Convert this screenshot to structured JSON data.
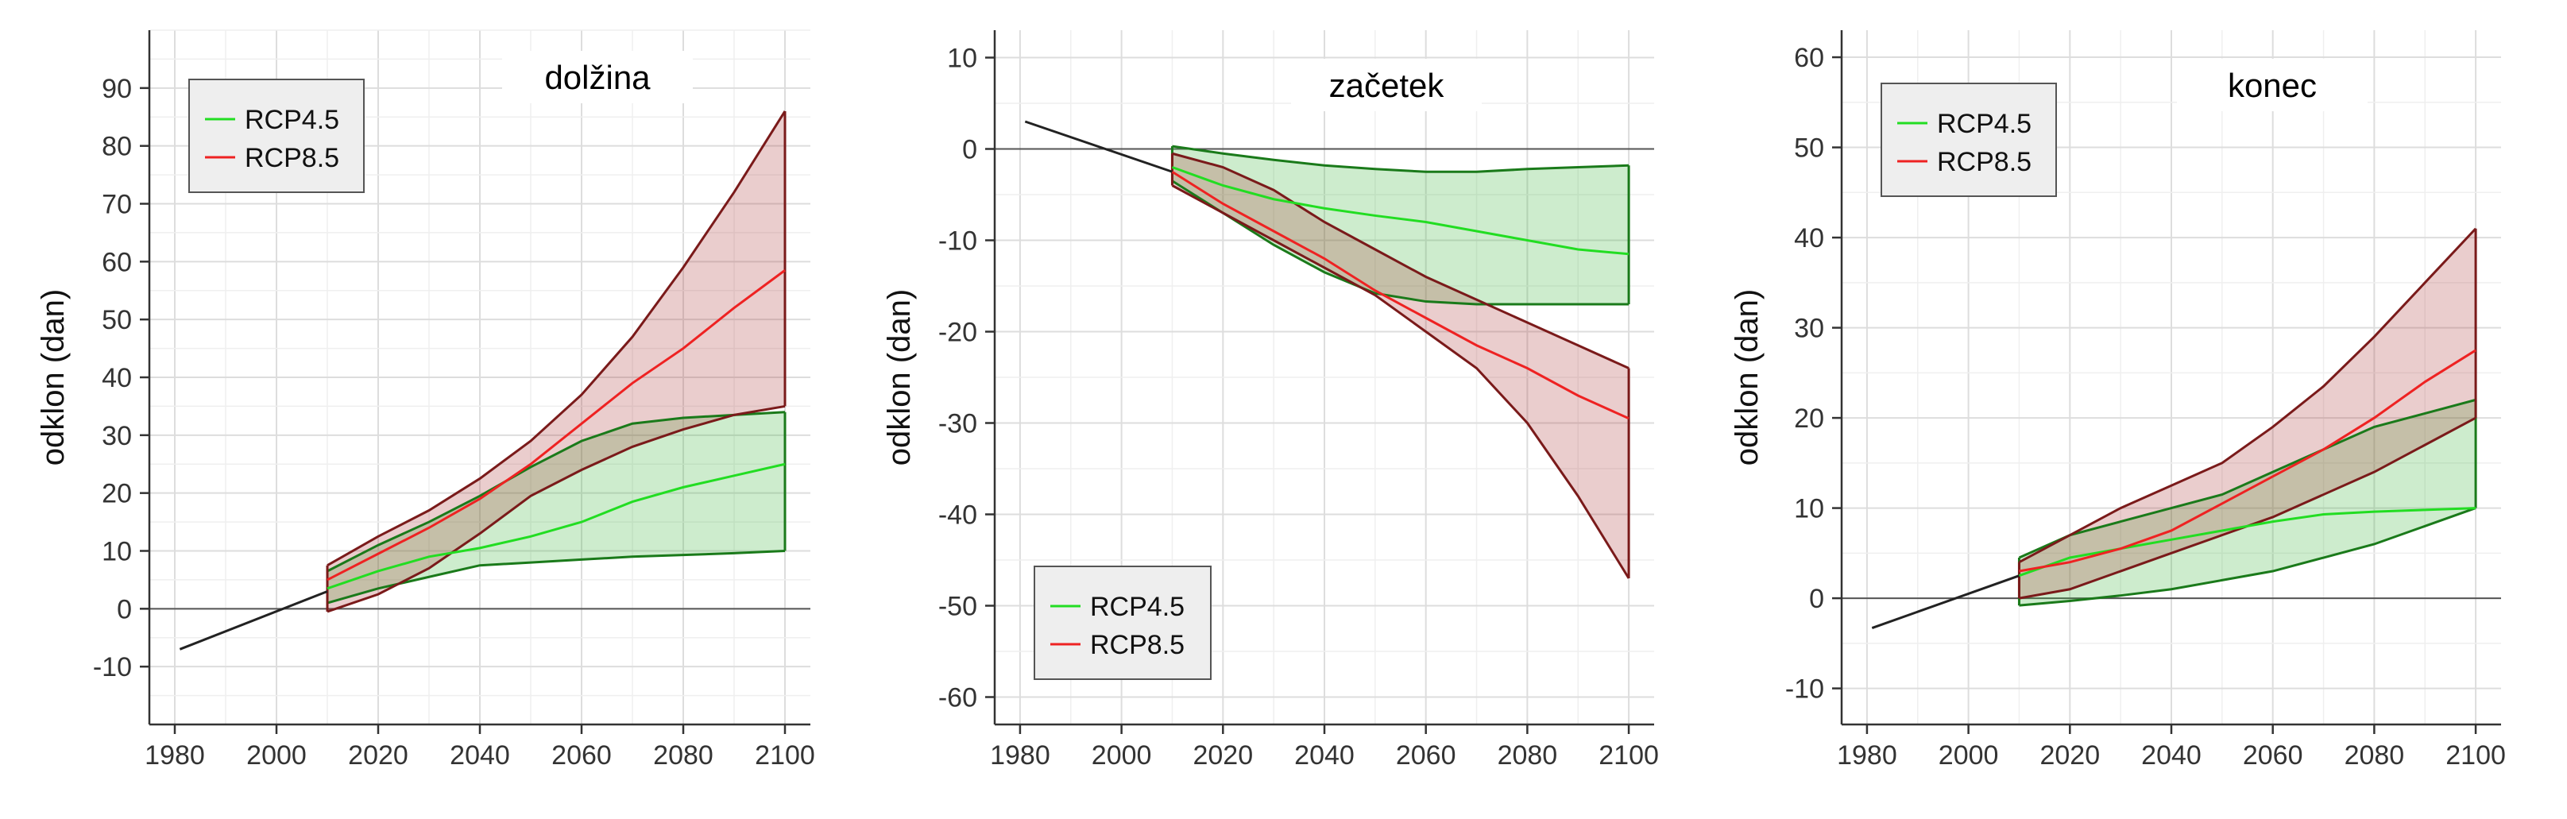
{
  "chart_data": [
    {
      "type": "line",
      "title": "dolžina",
      "xlabel": "",
      "ylabel": "odklon (dan)",
      "xlim": [
        1975,
        2105
      ],
      "ylim": [
        -20,
        100
      ],
      "x_ticks": [
        1980,
        2000,
        2020,
        2040,
        2060,
        2080,
        2100
      ],
      "y_ticks": [
        -10,
        0,
        10,
        20,
        30,
        40,
        50,
        60,
        70,
        80,
        90
      ],
      "grid": true,
      "legend_position": "top-left",
      "legend": [
        "RCP4.5",
        "RCP8.5"
      ],
      "observed_trend": {
        "x": [
          1981,
          2010
        ],
        "y": [
          -7,
          3
        ]
      },
      "series": [
        {
          "name": "RCP4.5",
          "color": "#22dd22",
          "band_color": "#1a7a1a",
          "x": [
            2010,
            2020,
            2030,
            2040,
            2050,
            2060,
            2070,
            2080,
            2090,
            2100
          ],
          "mean": [
            3.5,
            6.5,
            9,
            10.5,
            12.5,
            15,
            18.5,
            21,
            23,
            25
          ],
          "lower": [
            1,
            3.5,
            5.5,
            7.5,
            8,
            8.5,
            9,
            9.3,
            9.6,
            10
          ],
          "upper": [
            6.5,
            11,
            15,
            19.5,
            24.5,
            29,
            32,
            33,
            33.5,
            34
          ]
        },
        {
          "name": "RCP8.5",
          "color": "#ee2222",
          "band_color": "#7a1a1a",
          "x": [
            2010,
            2020,
            2030,
            2040,
            2050,
            2060,
            2070,
            2080,
            2090,
            2100
          ],
          "mean": [
            5,
            9.5,
            14,
            19,
            25,
            32,
            39,
            45,
            52,
            58.5
          ],
          "lower": [
            -0.5,
            2.5,
            7,
            13,
            19.5,
            24,
            28,
            31,
            33.5,
            35
          ],
          "upper": [
            7.5,
            12.5,
            17,
            22.5,
            29,
            37,
            47,
            59,
            72,
            86
          ]
        }
      ]
    },
    {
      "type": "line",
      "title": "začetek",
      "xlabel": "",
      "ylabel": "odklon (dan)",
      "xlim": [
        1975,
        2105
      ],
      "ylim": [
        -63,
        13
      ],
      "x_ticks": [
        1980,
        2000,
        2020,
        2040,
        2060,
        2080,
        2100
      ],
      "y_ticks": [
        -60,
        -50,
        -40,
        -30,
        -20,
        -10,
        0,
        10
      ],
      "grid": true,
      "legend_position": "bottom-left",
      "legend": [
        "RCP4.5",
        "RCP8.5"
      ],
      "observed_trend": {
        "x": [
          1981,
          2010
        ],
        "y": [
          3,
          -2.5
        ]
      },
      "series": [
        {
          "name": "RCP4.5",
          "color": "#22dd22",
          "band_color": "#1a7a1a",
          "x": [
            2010,
            2020,
            2030,
            2040,
            2050,
            2060,
            2070,
            2080,
            2090,
            2100
          ],
          "mean": [
            -2,
            -4,
            -5.5,
            -6.5,
            -7.3,
            -8,
            -9,
            -10,
            -11,
            -11.5
          ],
          "lower": [
            -3.5,
            -7,
            -10.5,
            -13.5,
            -15.8,
            -16.7,
            -17,
            -17,
            -17,
            -17
          ],
          "upper": [
            0.3,
            -0.5,
            -1.2,
            -1.8,
            -2.2,
            -2.5,
            -2.5,
            -2.2,
            -2,
            -1.8
          ]
        },
        {
          "name": "RCP8.5",
          "color": "#ee2222",
          "band_color": "#7a1a1a",
          "x": [
            2010,
            2020,
            2030,
            2040,
            2050,
            2060,
            2070,
            2080,
            2090,
            2100
          ],
          "mean": [
            -2.5,
            -6,
            -9,
            -12,
            -15.5,
            -18.5,
            -21.5,
            -24,
            -27,
            -29.5
          ],
          "lower": [
            -4,
            -7,
            -10,
            -13,
            -16,
            -20,
            -24,
            -30,
            -38,
            -47
          ],
          "upper": [
            -0.5,
            -2,
            -4.5,
            -8,
            -11,
            -14,
            -16.5,
            -19,
            -21.5,
            -24
          ]
        }
      ]
    },
    {
      "type": "line",
      "title": "konec",
      "xlabel": "",
      "ylabel": "odklon (dan)",
      "xlim": [
        1975,
        2105
      ],
      "ylim": [
        -14,
        63
      ],
      "x_ticks": [
        1980,
        2000,
        2020,
        2040,
        2060,
        2080,
        2100
      ],
      "y_ticks": [
        -10,
        0,
        10,
        20,
        30,
        40,
        50,
        60
      ],
      "grid": true,
      "legend_position": "top-left",
      "legend": [
        "RCP4.5",
        "RCP8.5"
      ],
      "observed_trend": {
        "x": [
          1981,
          2010
        ],
        "y": [
          -3.3,
          2.5
        ]
      },
      "series": [
        {
          "name": "RCP4.5",
          "color": "#22dd22",
          "band_color": "#1a7a1a",
          "x": [
            2010,
            2020,
            2030,
            2040,
            2050,
            2060,
            2070,
            2080,
            2090,
            2100
          ],
          "mean": [
            2.5,
            4.5,
            5.5,
            6.5,
            7.5,
            8.5,
            9.3,
            9.6,
            9.8,
            10
          ],
          "lower": [
            -0.8,
            -0.3,
            0.3,
            1,
            2,
            3,
            4.5,
            6,
            8,
            10
          ],
          "upper": [
            4.5,
            7,
            8.5,
            10,
            11.5,
            14,
            16.5,
            19,
            20.5,
            22
          ]
        },
        {
          "name": "RCP8.5",
          "color": "#ee2222",
          "band_color": "#7a1a1a",
          "x": [
            2010,
            2020,
            2030,
            2040,
            2050,
            2060,
            2070,
            2080,
            2090,
            2100
          ],
          "mean": [
            3,
            4,
            5.5,
            7.5,
            10.5,
            13.5,
            16.5,
            20,
            24,
            27.5
          ],
          "lower": [
            0,
            1,
            3,
            5,
            7,
            9,
            11.5,
            14,
            17,
            20
          ],
          "upper": [
            4,
            7,
            10,
            12.5,
            15,
            19,
            23.5,
            29,
            35,
            41
          ]
        }
      ]
    }
  ]
}
